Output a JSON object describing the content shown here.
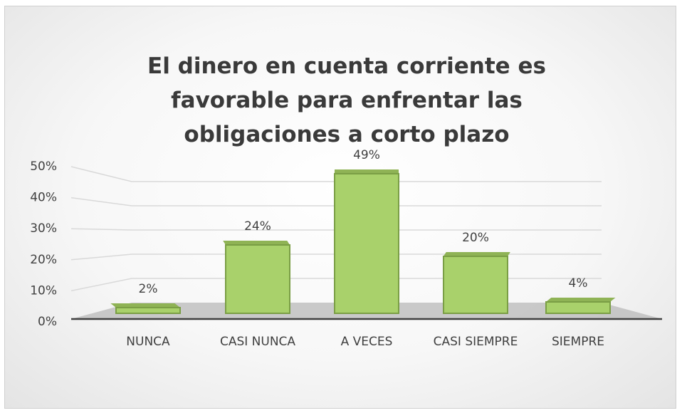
{
  "chart_data": {
    "type": "bar",
    "title": "El dinero en cuenta corriente es favorable para enfrentar las obligaciones a corto plazo",
    "categories": [
      "NUNCA",
      "CASI NUNCA",
      "A VECES",
      "CASI SIEMPRE",
      "SIEMPRE"
    ],
    "values": [
      2,
      24,
      49,
      20,
      4
    ],
    "value_labels": [
      "2%",
      "24%",
      "49%",
      "20%",
      "4%"
    ],
    "color": "#a9d16b",
    "ylim": [
      0,
      50
    ],
    "yticks": [
      {
        "value": 0,
        "label": "0%"
      },
      {
        "value": 10,
        "label": "10%"
      },
      {
        "value": 20,
        "label": "20%"
      },
      {
        "value": 30,
        "label": "30%"
      },
      {
        "value": 40,
        "label": "40%"
      },
      {
        "value": 50,
        "label": "50%"
      }
    ],
    "grid": true
  }
}
